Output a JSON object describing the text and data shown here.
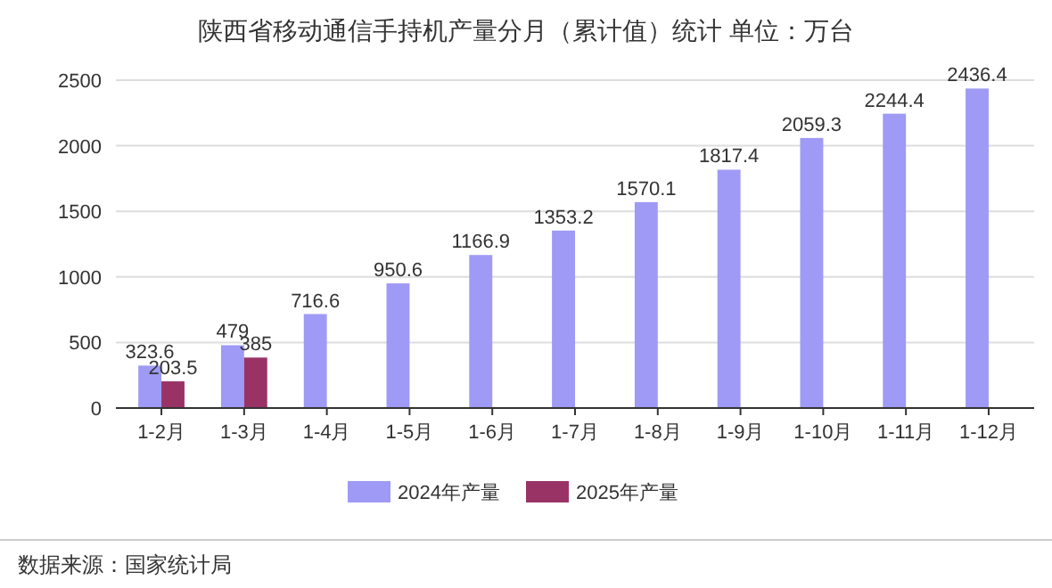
{
  "chart_data": {
    "type": "bar",
    "title": "陕西省移动通信手持机产量分月（累计值）统计  单位：万台",
    "categories": [
      "1-2月",
      "1-3月",
      "1-4月",
      "1-5月",
      "1-6月",
      "1-7月",
      "1-8月",
      "1-9月",
      "1-10月",
      "1-11月",
      "1-12月"
    ],
    "series": [
      {
        "name": "2024年产量",
        "color": "#9e9af5",
        "values": [
          323.6,
          479,
          716.6,
          950.6,
          1166.9,
          1353.2,
          1570.1,
          1817.4,
          2059.3,
          2244.4,
          2436.4
        ]
      },
      {
        "name": "2025年产量",
        "color": "#993366",
        "values": [
          203.5,
          385,
          null,
          null,
          null,
          null,
          null,
          null,
          null,
          null,
          null
        ]
      }
    ],
    "ylim": [
      0,
      2500
    ],
    "yticks": [
      0,
      500,
      1000,
      1500,
      2000,
      2500
    ],
    "grid": "y",
    "legend": "bottom",
    "data_labels": true,
    "annotations": [
      "数据来源：国家统计局"
    ]
  }
}
